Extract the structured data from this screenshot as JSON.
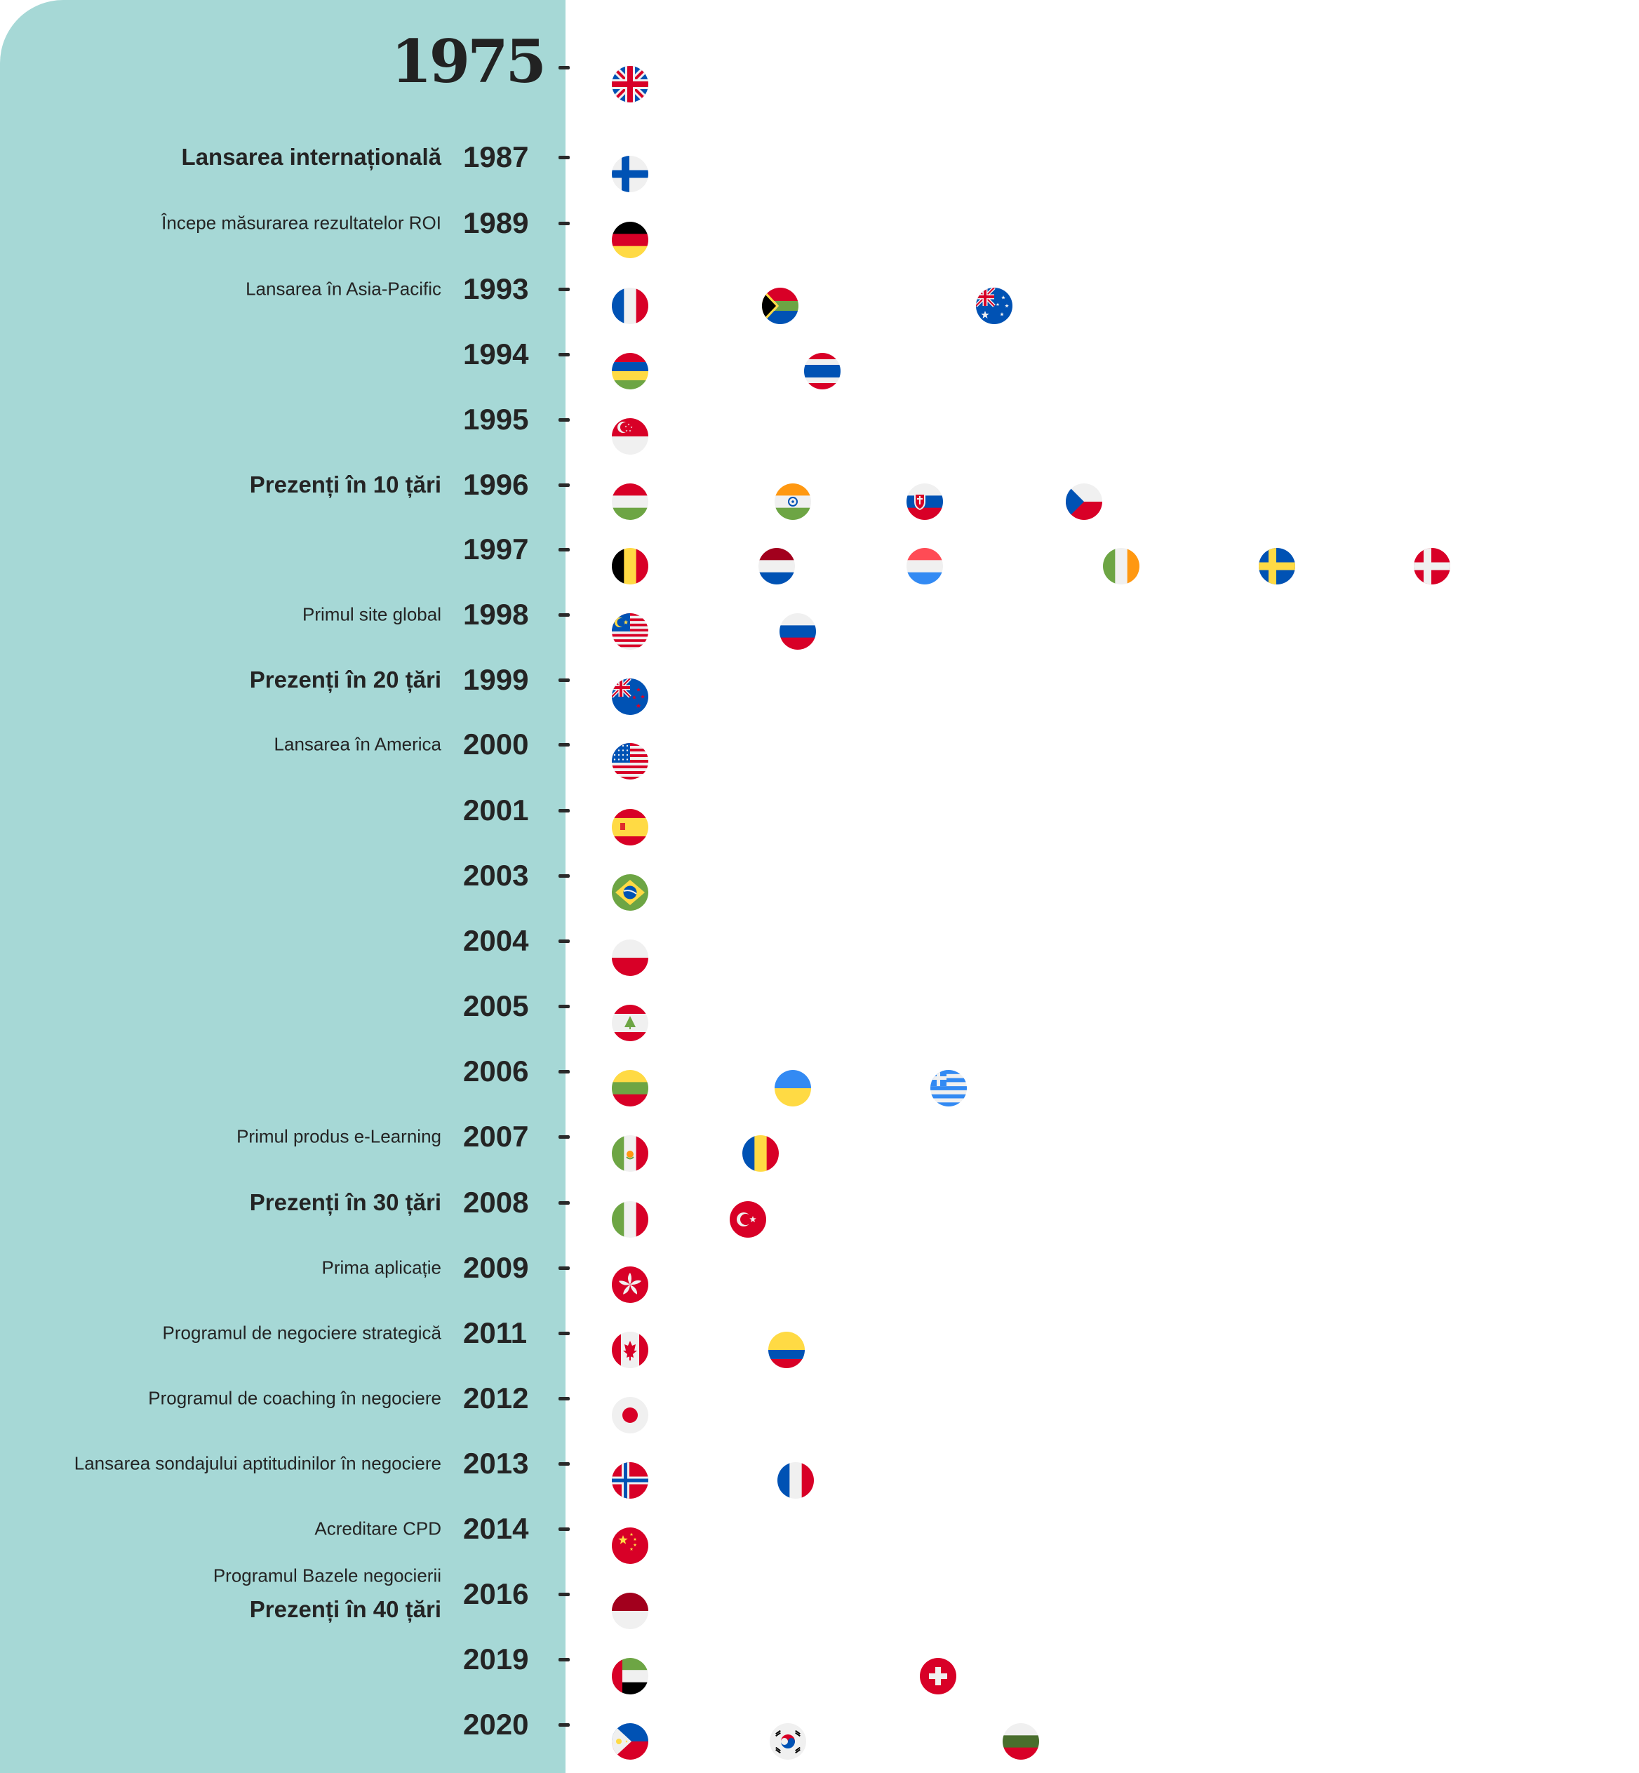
{
  "start_year": "1975",
  "rows": [
    {
      "year": "1975",
      "label": "",
      "emphasis": "",
      "flags": [
        "uk"
      ]
    },
    {
      "year": "1987",
      "label": "Lansarea internațională",
      "emphasis": "big",
      "flags": [
        "finland"
      ]
    },
    {
      "year": "1989",
      "label": "Începe măsurarea rezultatelor ROI",
      "emphasis": "small",
      "flags": [
        "germany"
      ]
    },
    {
      "year": "1993",
      "label": "Lansarea în Asia-Pacific",
      "emphasis": "small",
      "flags": [
        "france",
        "south-africa",
        "australia"
      ]
    },
    {
      "year": "1994",
      "label": "",
      "emphasis": "",
      "flags": [
        "mauritius",
        "thailand"
      ]
    },
    {
      "year": "1995",
      "label": "",
      "emphasis": "",
      "flags": [
        "singapore"
      ]
    },
    {
      "year": "1996",
      "label": "Prezenți în 10 țări",
      "emphasis": "big",
      "flags": [
        "hungary",
        "india",
        "slovakia",
        "czech-republic"
      ]
    },
    {
      "year": "1997",
      "label": "",
      "emphasis": "",
      "flags": [
        "belgium",
        "netherlands",
        "luxembourg",
        "ireland",
        "sweden",
        "denmark"
      ]
    },
    {
      "year": "1998",
      "label": "Primul site global",
      "emphasis": "small",
      "flags": [
        "malaysia",
        "russia"
      ]
    },
    {
      "year": "1999",
      "label": "Prezenți în 20 țări",
      "emphasis": "big",
      "flags": [
        "new-zealand"
      ]
    },
    {
      "year": "2000",
      "label": "Lansarea în America",
      "emphasis": "small",
      "flags": [
        "usa"
      ]
    },
    {
      "year": "2001",
      "label": "",
      "emphasis": "",
      "flags": [
        "spain"
      ]
    },
    {
      "year": "2003",
      "label": "",
      "emphasis": "",
      "flags": [
        "brazil"
      ]
    },
    {
      "year": "2004",
      "label": "",
      "emphasis": "",
      "flags": [
        "poland"
      ]
    },
    {
      "year": "2005",
      "label": "",
      "emphasis": "",
      "flags": [
        "lebanon"
      ]
    },
    {
      "year": "2006",
      "label": "",
      "emphasis": "",
      "flags": [
        "lithuania",
        "ukraine",
        "greece"
      ]
    },
    {
      "year": "2007",
      "label": "Primul produs e-Learning",
      "emphasis": "small",
      "flags": [
        "mexico",
        "romania"
      ]
    },
    {
      "year": "2008",
      "label": "Prezenți în 30 țări",
      "emphasis": "big",
      "flags": [
        "italy",
        "turkey"
      ]
    },
    {
      "year": "2009",
      "label": "Prima aplicație",
      "emphasis": "small",
      "flags": [
        "hong-kong"
      ]
    },
    {
      "year": "2011",
      "label": "Programul de negociere strategică",
      "emphasis": "small",
      "flags": [
        "canada",
        "colombia"
      ]
    },
    {
      "year": "2012",
      "label": "Programul de coaching în negociere",
      "emphasis": "small",
      "flags": [
        "japan"
      ]
    },
    {
      "year": "2013",
      "label": "Lansarea sondajului aptitudinilor în negociere",
      "emphasis": "small",
      "flags": [
        "norway",
        "france"
      ]
    },
    {
      "year": "2014",
      "label": "Acreditare CPD",
      "emphasis": "small",
      "flags": [
        "china"
      ]
    },
    {
      "year": "2016",
      "label": "Programul Bazele negocierii",
      "label2": "Prezenți în 40 țări",
      "emphasis": "small",
      "flags": [
        "indonesia"
      ]
    },
    {
      "year": "2019",
      "label": "",
      "emphasis": "",
      "flags": [
        "uae",
        "switzerland"
      ]
    },
    {
      "year": "2020",
      "label": "",
      "emphasis": "",
      "flags": [
        "philippines",
        "south-korea",
        "bulgaria"
      ]
    }
  ],
  "colors": {
    "panel": "#a6d8d6",
    "text": "#242424",
    "red": "#d80027",
    "blue": "#0052b4",
    "white": "#f0f0f0",
    "yellow": "#ffda44",
    "green": "#6da544",
    "black": "#000000",
    "orange": "#ff9811"
  }
}
